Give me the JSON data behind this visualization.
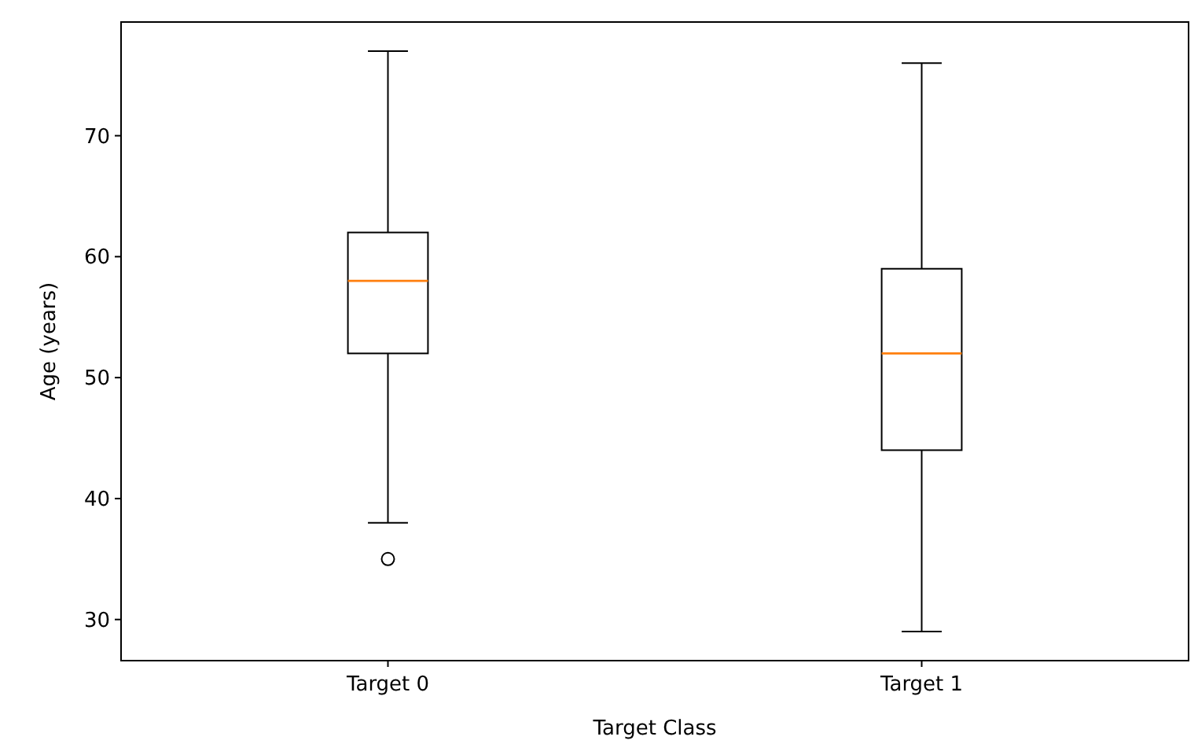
{
  "chart_data": {
    "type": "box",
    "xlabel": "Target Class",
    "ylabel": "Age (years)",
    "categories": [
      "Target 0",
      "Target 1"
    ],
    "boxes": [
      {
        "low": 38,
        "q1": 52,
        "median": 58,
        "q3": 62,
        "high": 77,
        "outliers": [
          35
        ]
      },
      {
        "low": 29,
        "q1": 44,
        "median": 52,
        "q3": 59,
        "high": 76
      }
    ],
    "ylim": [
      26.6,
      79.4
    ],
    "yticks": [
      30,
      40,
      50,
      60,
      70
    ],
    "grid": false
  }
}
